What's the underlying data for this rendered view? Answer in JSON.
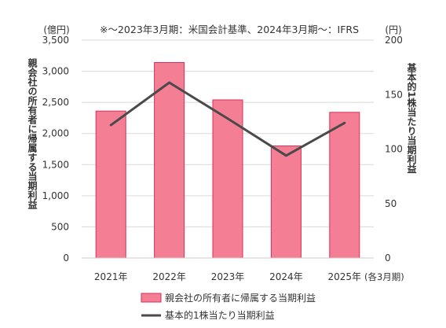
{
  "chart_data": {
    "type": "bar",
    "title": "※～2023年3月期：米国会計基準、2024年3月期～：IFRS",
    "categories": [
      "2021年",
      "2022年",
      "2023年",
      "2024年",
      "2025年"
    ],
    "category_suffix": "(各3月期)",
    "left_axis": {
      "unit": "(億円)",
      "label": "親会社の所有者に帰属する当期利益",
      "ylim": [
        0,
        3500
      ],
      "ticks": [
        "0",
        "500",
        "1,000",
        "1,500",
        "2,000",
        "2,500",
        "3,000",
        "3,500"
      ]
    },
    "right_axis": {
      "unit": "(円)",
      "label": "基本的1株当たり当期利益",
      "ylim": [
        0,
        200
      ],
      "ticks": [
        "0",
        "50",
        "100",
        "150",
        "200"
      ]
    },
    "series": [
      {
        "name": "親会社の所有者に帰属する当期利益",
        "type": "bar",
        "axis": "left",
        "values": [
          2360,
          3140,
          2540,
          1800,
          2340
        ],
        "color": "#f47e94",
        "stroke": "#d8305a"
      },
      {
        "name": "基本的1株当たり当期利益",
        "type": "line",
        "axis": "right",
        "values": [
          122,
          161,
          128,
          94,
          124
        ],
        "color": "#4a4a4a"
      }
    ],
    "grid": true,
    "legend_position": "bottom"
  }
}
